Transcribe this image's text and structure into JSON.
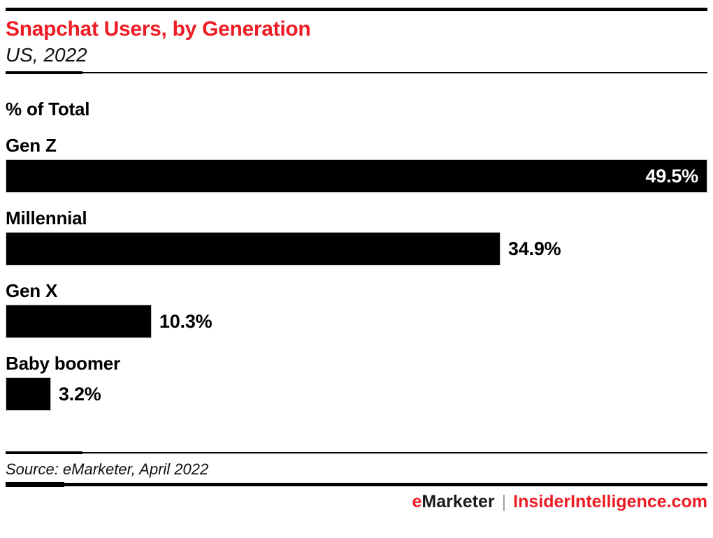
{
  "header": {
    "title": "Snapchat Users, by Generation",
    "subtitle": "US, 2022"
  },
  "chart_data": {
    "type": "bar",
    "orientation": "horizontal",
    "title": "Snapchat Users, by Generation",
    "subtitle": "US, 2022",
    "unit_label": "% of Total",
    "categories": [
      "Gen Z",
      "Millennial",
      "Gen X",
      "Baby boomer"
    ],
    "values": [
      49.5,
      34.9,
      10.3,
      3.2
    ],
    "value_labels": [
      "49.5%",
      "34.9%",
      "10.3%",
      "3.2%"
    ],
    "xlim": [
      0,
      49.5
    ],
    "grid": false,
    "legend": "none",
    "bar_color": "#000000",
    "value_label_positions": [
      "inside-end",
      "outside-end",
      "outside-end",
      "outside-end"
    ]
  },
  "footer": {
    "source": "Source: eMarketer, April 2022",
    "brand_first_letter": "e",
    "brand_rest": "Marketer",
    "separator": "|",
    "site": "InsiderIntelligence.com"
  },
  "colors": {
    "accent_red": "#ED1C24",
    "bar": "#000000",
    "text": "#000000",
    "separator_gray": "#9b9b9b",
    "background": "#ffffff"
  }
}
